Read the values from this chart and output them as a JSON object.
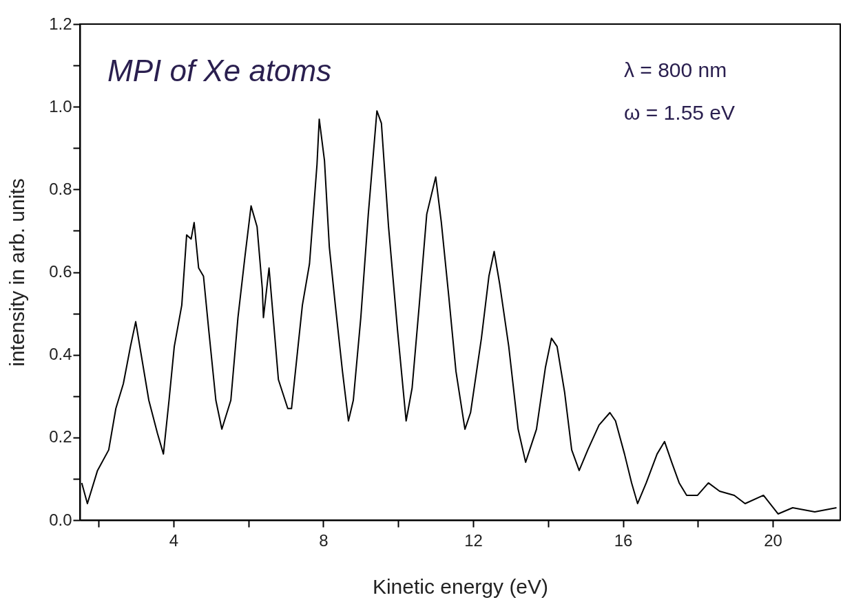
{
  "chart_data": {
    "type": "line",
    "xlabel": "Kinetic energy (eV)",
    "ylabel": "intensity in arb. units",
    "annotations": [
      "MPI of Xe atoms",
      "λ = 800 nm",
      "ω = 1.55 eV"
    ],
    "xlim": [
      1.5,
      21.8
    ],
    "ylim": [
      0,
      1.2
    ],
    "xticks": [
      {
        "value": 2,
        "label": null
      },
      4,
      {
        "value": 6,
        "label": null
      },
      8,
      {
        "value": 10,
        "label": null
      },
      12,
      {
        "value": 14,
        "label": null
      },
      16,
      {
        "value": 18,
        "label": null
      },
      20
    ],
    "yticks": [
      {
        "value": 0,
        "label": "0.0"
      },
      {
        "value": 0.1,
        "label": null
      },
      0.2,
      {
        "value": 0.3,
        "label": null
      },
      0.4,
      {
        "value": 0.5,
        "label": null
      },
      0.6,
      {
        "value": 0.7,
        "label": null
      },
      0.8,
      {
        "value": 0.9,
        "label": null
      },
      {
        "value": 1,
        "label": "1.0"
      },
      {
        "value": 1.1,
        "label": null
      },
      1.2
    ],
    "grid": false,
    "marker": "none",
    "line_style": "solid",
    "series": [
      {
        "color": "#000000",
        "x": [
          1.55,
          1.7,
          1.97,
          2.27,
          2.46,
          2.66,
          2.85,
          2.99,
          3.1,
          3.34,
          3.57,
          3.73,
          3.88,
          4.02,
          4.22,
          4.35,
          4.47,
          4.55,
          4.67,
          4.8,
          4.94,
          5.13,
          5.29,
          5.53,
          5.72,
          5.91,
          6.07,
          6.23,
          6.37,
          6.4,
          6.55,
          6.8,
          7.05,
          7.15,
          7.44,
          7.63,
          7.83,
          7.89,
          8.03,
          8.16,
          8.32,
          8.51,
          8.67,
          8.8,
          9.0,
          9.2,
          9.43,
          9.55,
          9.74,
          9.98,
          10.21,
          10.37,
          10.56,
          10.76,
          11.0,
          11.15,
          11.35,
          11.54,
          11.78,
          11.93,
          12.22,
          12.42,
          12.56,
          12.71,
          12.95,
          13.2,
          13.4,
          13.69,
          13.93,
          14.09,
          14.24,
          14.44,
          14.63,
          14.83,
          15.06,
          15.36,
          15.65,
          15.8,
          16.04,
          16.23,
          16.39,
          16.62,
          16.91,
          17.11,
          17.3,
          17.5,
          17.7,
          17.99,
          18.28,
          18.58,
          18.97,
          19.26,
          19.75,
          20.14,
          20.53,
          21.12,
          21.7
        ],
        "values": [
          0.09,
          0.04,
          0.12,
          0.17,
          0.27,
          0.33,
          0.42,
          0.48,
          0.42,
          0.29,
          0.21,
          0.16,
          0.29,
          0.42,
          0.52,
          0.69,
          0.68,
          0.72,
          0.61,
          0.59,
          0.46,
          0.29,
          0.22,
          0.29,
          0.49,
          0.64,
          0.76,
          0.71,
          0.56,
          0.49,
          0.61,
          0.34,
          0.27,
          0.27,
          0.52,
          0.62,
          0.86,
          0.97,
          0.87,
          0.66,
          0.52,
          0.36,
          0.24,
          0.29,
          0.49,
          0.74,
          0.99,
          0.96,
          0.71,
          0.46,
          0.24,
          0.32,
          0.52,
          0.74,
          0.83,
          0.72,
          0.54,
          0.36,
          0.22,
          0.26,
          0.44,
          0.59,
          0.65,
          0.57,
          0.42,
          0.22,
          0.14,
          0.22,
          0.37,
          0.44,
          0.42,
          0.31,
          0.17,
          0.12,
          0.17,
          0.23,
          0.26,
          0.24,
          0.16,
          0.09,
          0.04,
          0.09,
          0.16,
          0.19,
          0.14,
          0.09,
          0.06,
          0.06,
          0.09,
          0.07,
          0.06,
          0.04,
          0.06,
          0.015,
          0.03,
          0.02,
          0.03
        ]
      }
    ]
  }
}
